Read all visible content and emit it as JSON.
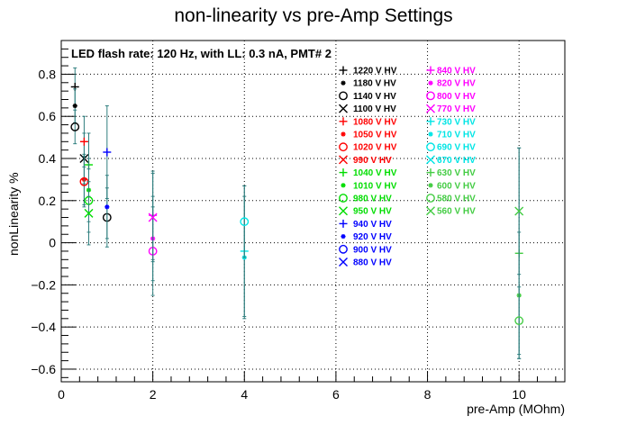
{
  "chart_data": {
    "type": "scatter",
    "title": "non-linearity vs pre-Amp Settings",
    "xlabel": "pre-Amp (MOhm)",
    "ylabel": "nonLinearity %",
    "annotation": "LED flash rate: 120 Hz, with LL: 0.3 nA, PMT# 2",
    "xlim": [
      0,
      11
    ],
    "ylim": [
      -0.66,
      0.96
    ],
    "xticks": [
      "0",
      "2",
      "4",
      "6",
      "8",
      "10"
    ],
    "yticks": [
      "−0.6",
      "−0.4",
      "−0.2",
      "0",
      "0.2",
      "0.4",
      "0.6",
      "0.8"
    ],
    "grid": true,
    "legend_placement": "top-right",
    "series": [
      {
        "name": "1220 V HV",
        "color": "#000000",
        "marker": "plus",
        "points": [
          [
            0.3,
            0.74,
            0.09
          ]
        ]
      },
      {
        "name": "1180 V HV",
        "color": "#000000",
        "marker": "star",
        "points": [
          [
            0.3,
            0.65,
            0.08
          ]
        ]
      },
      {
        "name": "1140 V HV",
        "color": "#000000",
        "marker": "circle",
        "points": [
          [
            0.3,
            0.55,
            0.08
          ],
          [
            1.0,
            0.12,
            0.14
          ]
        ]
      },
      {
        "name": "1100 V HV",
        "color": "#000000",
        "marker": "x",
        "points": [
          [
            0.5,
            0.4,
            0.12
          ]
        ]
      },
      {
        "name": "1080 V HV",
        "color": "#ff0000",
        "marker": "plus",
        "points": [
          [
            0.5,
            0.48,
            0.12
          ]
        ]
      },
      {
        "name": "1050 V HV",
        "color": "#ff0000",
        "marker": "star",
        "points": [
          [
            0.5,
            0.3,
            0.12
          ]
        ]
      },
      {
        "name": "1020 V HV",
        "color": "#ff0000",
        "marker": "circle",
        "points": [
          [
            0.5,
            0.29,
            0.12
          ]
        ]
      },
      {
        "name": "990 V HV",
        "color": "#ff0000",
        "marker": "x",
        "points": []
      },
      {
        "name": "1040 V HV",
        "color": "#00dd00",
        "marker": "plus",
        "points": [
          [
            0.6,
            0.37,
            0.15
          ]
        ]
      },
      {
        "name": "1010 V HV",
        "color": "#00dd00",
        "marker": "star",
        "points": [
          [
            0.6,
            0.25,
            0.15
          ]
        ]
      },
      {
        "name": "980 V HV",
        "color": "#00dd00",
        "marker": "circle",
        "points": [
          [
            0.6,
            0.2,
            0.15
          ]
        ]
      },
      {
        "name": "950 V HV",
        "color": "#00dd00",
        "marker": "x",
        "points": [
          [
            0.6,
            0.14,
            0.15
          ]
        ]
      },
      {
        "name": "940 V HV",
        "color": "#0000ff",
        "marker": "plus",
        "points": [
          [
            1.0,
            0.43,
            0.22
          ]
        ]
      },
      {
        "name": "920 V HV",
        "color": "#0000ff",
        "marker": "star",
        "points": [
          [
            1.0,
            0.17,
            0.15
          ]
        ]
      },
      {
        "name": "900 V HV",
        "color": "#0000ff",
        "marker": "circle",
        "points": []
      },
      {
        "name": "880 V HV",
        "color": "#0000ff",
        "marker": "x",
        "points": []
      },
      {
        "name": "840 V HV",
        "color": "#ff00ff",
        "marker": "plus",
        "points": [
          [
            2.0,
            0.13,
            0.21
          ]
        ]
      },
      {
        "name": "820 V HV",
        "color": "#ff00ff",
        "marker": "star",
        "points": [
          [
            2.0,
            0.02,
            0.2
          ]
        ]
      },
      {
        "name": "800 V HV",
        "color": "#ff00ff",
        "marker": "circle",
        "points": [
          [
            2.0,
            -0.04,
            0.21
          ]
        ]
      },
      {
        "name": "770 V HV",
        "color": "#ff00ff",
        "marker": "x",
        "points": [
          [
            2.0,
            0.12,
            0.21
          ]
        ]
      },
      {
        "name": "730 V HV",
        "color": "#00e5e5",
        "marker": "plus",
        "points": [
          [
            4.0,
            -0.04,
            0.31
          ]
        ]
      },
      {
        "name": "710 V HV",
        "color": "#00e5e5",
        "marker": "star",
        "points": [
          [
            4.0,
            -0.07,
            0.29
          ]
        ]
      },
      {
        "name": "690 V HV",
        "color": "#00e5e5",
        "marker": "circle",
        "points": [
          [
            4.0,
            0.1,
            0.17
          ]
        ]
      },
      {
        "name": "670 V HV",
        "color": "#00e5e5",
        "marker": "x",
        "points": []
      },
      {
        "name": "630 V HV",
        "color": "#44cc44",
        "marker": "plus",
        "points": [
          [
            10.0,
            -0.05,
            0.5
          ]
        ]
      },
      {
        "name": "600 V HV",
        "color": "#44cc44",
        "marker": "star",
        "points": [
          [
            10.0,
            -0.25,
            0.3
          ]
        ]
      },
      {
        "name": "580 V HV",
        "color": "#44cc44",
        "marker": "circle",
        "points": [
          [
            10.0,
            -0.37,
            0.16
          ]
        ]
      },
      {
        "name": "560 V HV",
        "color": "#44cc44",
        "marker": "x",
        "points": [
          [
            10.0,
            0.15,
            0.3
          ]
        ]
      }
    ]
  }
}
